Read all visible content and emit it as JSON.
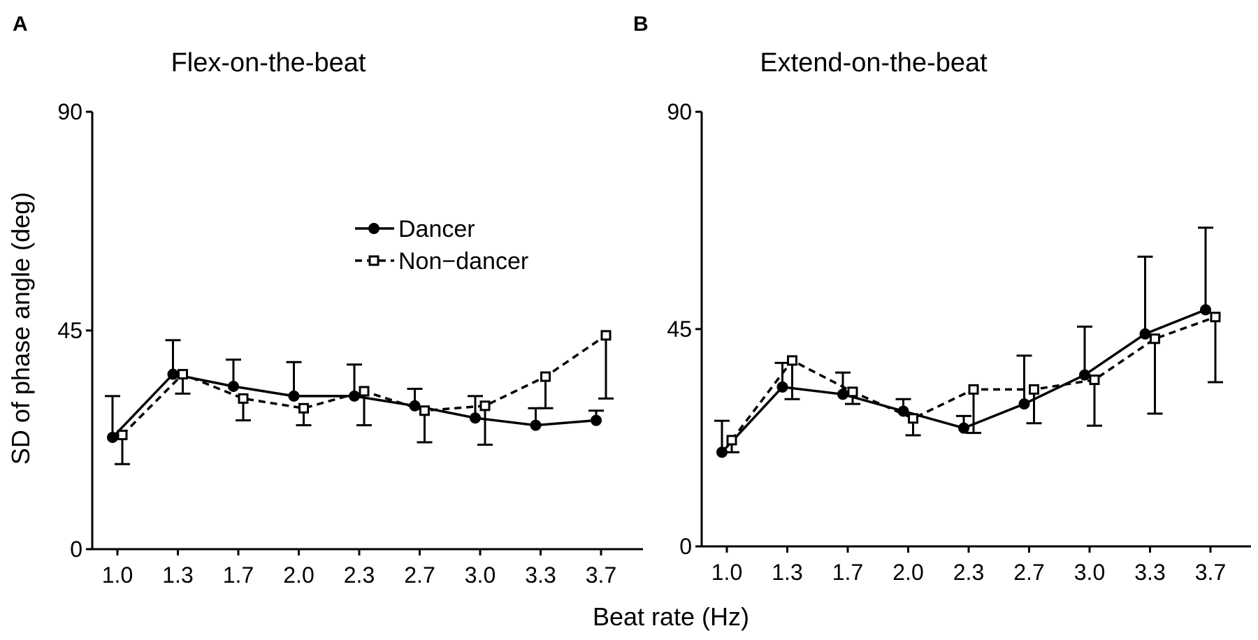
{
  "xlabel_shared": "Beat rate (Hz)",
  "ylabel_shared": "SD of phase angle (deg)",
  "legend": {
    "dancer": "Dancer",
    "nondancer": "Non−dancer"
  },
  "chart_data": [
    {
      "type": "line",
      "panel": "A",
      "title": "Flex-on-the-beat",
      "xlabel": "Beat rate (Hz)",
      "ylabel": "SD of phase angle (deg)",
      "categories": [
        "1.0",
        "1.3",
        "1.7",
        "2.0",
        "2.3",
        "2.7",
        "3.0",
        "3.3",
        "3.7"
      ],
      "ylim": [
        0,
        90
      ],
      "yticks": [
        "0",
        "45",
        "90"
      ],
      "series": [
        {
          "name": "Dancer",
          "values": [
            23,
            36,
            33.5,
            31.5,
            31.5,
            29.5,
            27,
            25.5,
            26.5
          ],
          "error_upper": [
            31.5,
            43,
            39,
            38.5,
            38,
            33,
            31.5,
            29,
            28.5
          ]
        },
        {
          "name": "Non−dancer",
          "values": [
            23.5,
            36,
            31,
            29,
            32.5,
            28.5,
            29.5,
            35.5,
            44
          ],
          "error_lower": [
            17.5,
            32,
            26.5,
            25.5,
            25.5,
            22,
            21.5,
            29,
            31
          ]
        }
      ]
    },
    {
      "type": "line",
      "panel": "B",
      "title": "Extend-on-the-beat",
      "xlabel": "Beat rate (Hz)",
      "ylabel": "SD of phase angle (deg)",
      "categories": [
        "1.0",
        "1.3",
        "1.7",
        "2.0",
        "2.3",
        "2.7",
        "3.0",
        "3.3",
        "3.7"
      ],
      "ylim": [
        0,
        90
      ],
      "yticks": [
        "0",
        "45",
        "90"
      ],
      "series": [
        {
          "name": "Dancer",
          "values": [
            19.5,
            33,
            31.5,
            28,
            24.5,
            29.5,
            35.5,
            44,
            49
          ],
          "error_upper": [
            26,
            38,
            36,
            30.5,
            27,
            39.5,
            45.5,
            60,
            66
          ]
        },
        {
          "name": "Non−dancer",
          "values": [
            22,
            38.5,
            32,
            26.5,
            32.5,
            32.5,
            34.5,
            43,
            47.5
          ],
          "error_lower": [
            19.5,
            30.5,
            29.5,
            23,
            23.5,
            25.5,
            25,
            27.5,
            34
          ]
        }
      ]
    }
  ]
}
